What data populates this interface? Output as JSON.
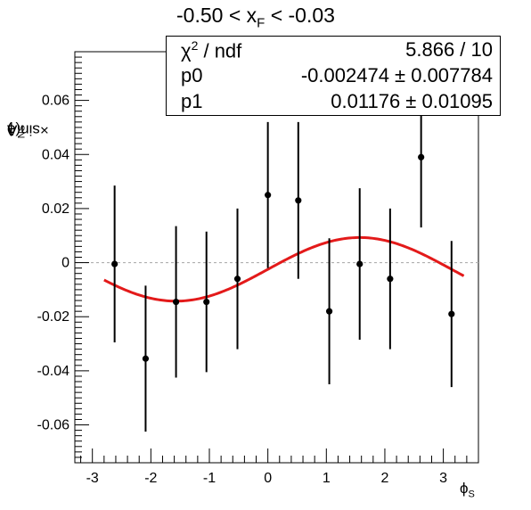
{
  "title": {
    "prefix": "-0.50 < x",
    "sub": "F",
    "suffix": " < -0.03"
  },
  "stats": {
    "chi_label_base": "χ",
    "chi_label_sup": "2",
    "chi_label_rest": " / ndf",
    "chi_value": "5.866 / 10",
    "p0_label": "p0",
    "p0_value": "-0.002474 ± 0.007784",
    "p1_label": "p1",
    "p1_value": "0.01176 ± 0.01095"
  },
  "axes": {
    "ylabel_prefix": "A",
    "ylabel_sub1": "N",
    "ylabel_mid": "×sin(ϕ",
    "ylabel_sub2": "S",
    "ylabel_suffix": ")",
    "xlabel_base": "ϕ",
    "xlabel_sub": "S"
  },
  "colors": {
    "fit": "#e31a1a",
    "points": "#000000",
    "zero_line": "#b0b0b0"
  },
  "chart_data": {
    "type": "scatter",
    "xlim": [
      -3.3,
      3.6
    ],
    "ylim": [
      -0.074,
      0.078
    ],
    "x_ticks": [
      -3,
      -2,
      -1,
      0,
      1,
      2,
      3
    ],
    "x_tick_labels": [
      "-3",
      "-2",
      "-1",
      "0",
      "1",
      "2",
      "3"
    ],
    "y_ticks": [
      -0.06,
      -0.04,
      -0.02,
      0,
      0.02,
      0.04,
      0.06
    ],
    "y_tick_labels": [
      "-0.06",
      "-0.04",
      "-0.02",
      "0",
      "0.02",
      "0.04",
      "0.06"
    ],
    "points": [
      {
        "x": -2.62,
        "y": -0.0005,
        "err": 0.029
      },
      {
        "x": -2.09,
        "y": -0.0355,
        "err": 0.027
      },
      {
        "x": -1.57,
        "y": -0.0145,
        "err": 0.028
      },
      {
        "x": -1.05,
        "y": -0.0145,
        "err": 0.026
      },
      {
        "x": -0.52,
        "y": -0.006,
        "err": 0.026
      },
      {
        "x": 0.0,
        "y": 0.025,
        "err": 0.027
      },
      {
        "x": 0.52,
        "y": 0.023,
        "err": 0.029
      },
      {
        "x": 1.05,
        "y": -0.018,
        "err": 0.027
      },
      {
        "x": 1.57,
        "y": -0.0005,
        "err": 0.028
      },
      {
        "x": 2.09,
        "y": -0.006,
        "err": 0.026
      },
      {
        "x": 2.62,
        "y": 0.039,
        "err": 0.026
      },
      {
        "x": 3.14,
        "y": -0.019,
        "err": 0.027
      }
    ],
    "fit": {
      "function": "p0 + p1*sin(x)",
      "p0": -0.002474,
      "p1": 0.01176,
      "x_range": [
        -2.8,
        3.35
      ]
    },
    "zero_line": 0,
    "grid": false
  }
}
